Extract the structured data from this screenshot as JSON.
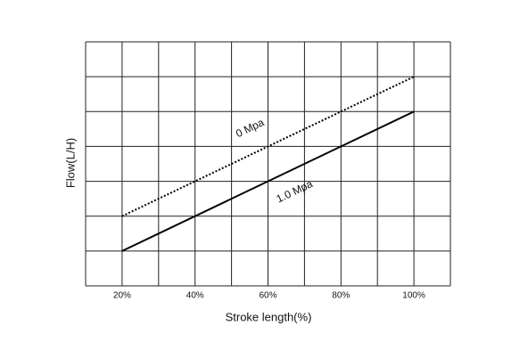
{
  "chart_data": {
    "type": "line",
    "x_label": "Stroke length(%)",
    "y_label": "Flow(L/H)",
    "xlim": [
      10,
      110
    ],
    "ylim": [
      0,
      7
    ],
    "xticks": [
      {
        "value": 20,
        "label": "20%"
      },
      {
        "value": 40,
        "label": "40%"
      },
      {
        "value": 60,
        "label": "60%"
      },
      {
        "value": 80,
        "label": "80%"
      },
      {
        "value": 100,
        "label": "100%"
      }
    ],
    "xgrid": [
      10,
      20,
      30,
      40,
      50,
      60,
      70,
      80,
      90,
      100,
      110
    ],
    "ygrid": [
      0,
      1,
      2,
      3,
      4,
      5,
      6,
      7
    ],
    "grid": true,
    "series": [
      {
        "name": "0 Mpa",
        "color": "#000000",
        "style": "dotted",
        "x": [
          20,
          100
        ],
        "values": [
          2,
          6
        ]
      },
      {
        "name": "1.0 Mpa",
        "color": "#000000",
        "style": "solid",
        "x": [
          20,
          100
        ],
        "values": [
          1,
          5
        ]
      }
    ]
  }
}
